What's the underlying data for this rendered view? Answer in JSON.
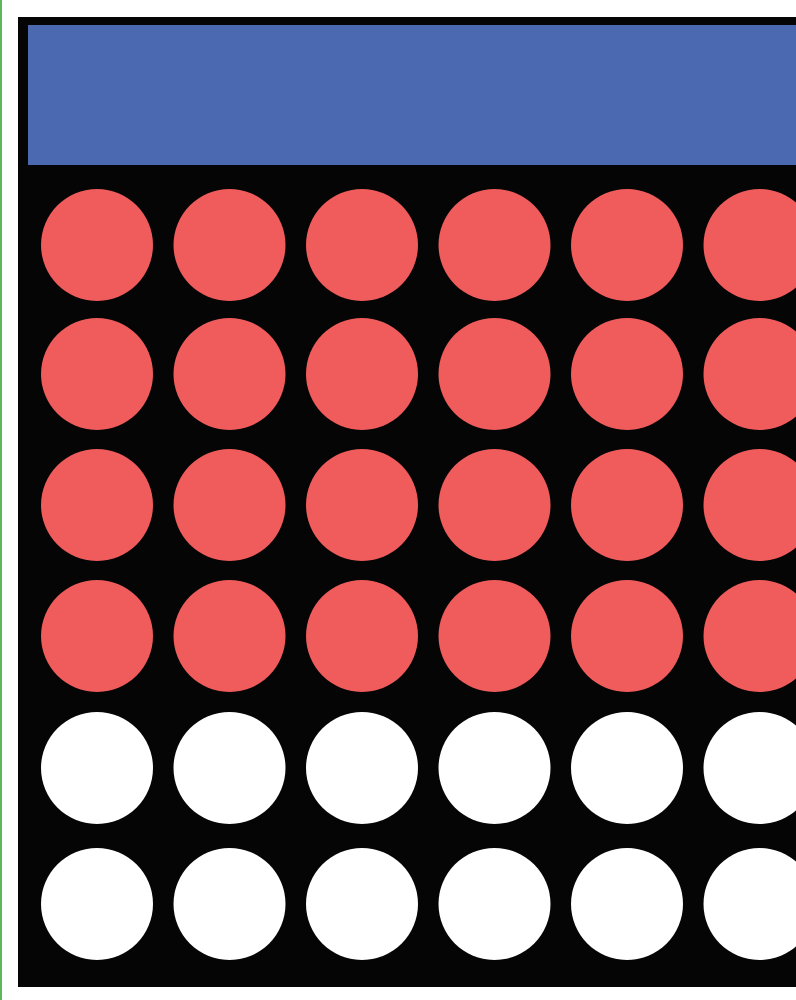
{
  "board": {
    "header_color": "#4a69b0",
    "frame_color": "#050505",
    "rows": [
      [
        "#f05b5b",
        "#f05b5b",
        "#f05b5b",
        "#f05b5b",
        "#f05b5b",
        "#f05b5b"
      ],
      [
        "#f05b5b",
        "#f05b5b",
        "#f05b5b",
        "#f05b5b",
        "#f05b5b",
        "#f05b5b"
      ],
      [
        "#f05b5b",
        "#f05b5b",
        "#f05b5b",
        "#f05b5b",
        "#f05b5b",
        "#f05b5b"
      ],
      [
        "#f05b5b",
        "#f05b5b",
        "#f05b5b",
        "#f05b5b",
        "#f05b5b",
        "#f05b5b"
      ],
      [
        "#ffffff",
        "#ffffff",
        "#ffffff",
        "#ffffff",
        "#ffffff",
        "#ffffff"
      ],
      [
        "#ffffff",
        "#ffffff",
        "#ffffff",
        "#ffffff",
        "#ffffff",
        "#ffffff"
      ]
    ]
  }
}
